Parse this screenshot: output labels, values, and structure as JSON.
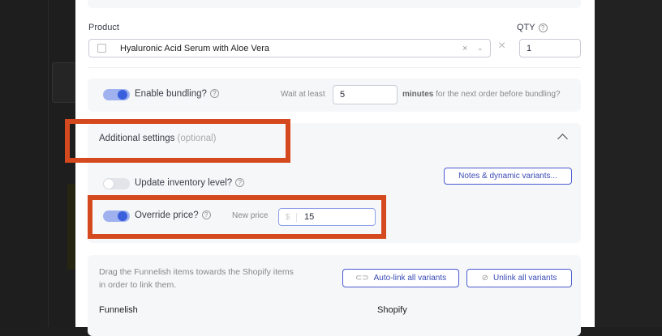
{
  "product": {
    "label": "Product",
    "value": "Hyaluronic Acid Serum with Aloe Vera",
    "qty_label": "QTY",
    "qty_value": "1"
  },
  "bundling": {
    "label": "Enable bundling?",
    "enabled": true,
    "wait_prefix": "Wait at least",
    "wait_value": "5",
    "wait_unit": "minutes",
    "wait_suffix": "for the next order before bundling?"
  },
  "additional": {
    "title": "Additional settings",
    "optional": "(optional)",
    "inventory_label": "Update inventory level?",
    "inventory_enabled": false,
    "notes_button": "Notes & dynamic variants...",
    "override_label": "Override price?",
    "override_enabled": true,
    "new_price_label": "New price",
    "currency": "$",
    "price_value": "15"
  },
  "linking": {
    "instructions_line1": "Drag the Funnelish items towards the Shopify items",
    "instructions_line2": "in order to link them.",
    "autolink_button": "Auto-link all variants",
    "unlink_button": "Unlink all variants",
    "col_funnelish": "Funnelish",
    "col_shopify": "Shopify"
  },
  "help_glyph": "?",
  "colors": {
    "accent": "#3a5fdc",
    "highlight": "#d44a1e"
  }
}
